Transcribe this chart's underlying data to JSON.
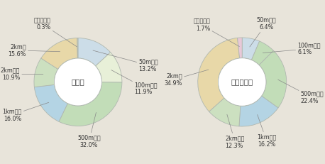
{
  "chart1": {
    "center_label": "高齢者",
    "slices": [
      {
        "label": "50m以下\n13.2%",
        "value": 13.2,
        "color": "#ccdde8"
      },
      {
        "label": "100m以下\n11.9%",
        "value": 11.9,
        "color": "#e8f0d8"
      },
      {
        "label": "500m以下\n32.0%",
        "value": 32.0,
        "color": "#c2ddb8"
      },
      {
        "label": "1km以下\n16.0%",
        "value": 16.0,
        "color": "#b4d4e4"
      },
      {
        "label": "2km以下\n10.9%",
        "value": 10.9,
        "color": "#cce0c0"
      },
      {
        "label": "2km超\n15.6%",
        "value": 15.6,
        "color": "#e8d8a8"
      },
      {
        "label": "調査不能等\n0.3%",
        "value": 0.3,
        "color": "#ddd8c0"
      }
    ]
  },
  "chart2": {
    "center_label": "高齢者以外",
    "slices": [
      {
        "label": "50m以下\n6.4%",
        "value": 6.4,
        "color": "#ccdde8"
      },
      {
        "label": "100m以下\n6.1%",
        "value": 6.1,
        "color": "#c2ddb8"
      },
      {
        "label": "500m以下\n22.4%",
        "value": 22.4,
        "color": "#c2ddb8"
      },
      {
        "label": "1km以下\n16.2%",
        "value": 16.2,
        "color": "#b4d4e4"
      },
      {
        "label": "2km以下\n12.3%",
        "value": 12.3,
        "color": "#cce0c0"
      },
      {
        "label": "2km超\n34.9%",
        "value": 34.9,
        "color": "#e8d8a8"
      },
      {
        "label": "調査不能等\n1.7%",
        "value": 1.7,
        "color": "#e8c8d8"
      }
    ]
  },
  "bg_color": "#e8e4da",
  "label_positions_1": [
    [
      1.38,
      0.38,
      "left"
    ],
    [
      1.28,
      -0.15,
      "left"
    ],
    [
      0.25,
      -1.35,
      "center"
    ],
    [
      -1.28,
      -0.75,
      "right"
    ],
    [
      -1.32,
      0.18,
      "right"
    ],
    [
      -1.18,
      0.72,
      "right"
    ],
    [
      -0.62,
      1.32,
      "right"
    ]
  ],
  "label_positions_2": [
    [
      0.55,
      1.32,
      "center"
    ],
    [
      1.25,
      0.75,
      "left"
    ],
    [
      1.32,
      -0.35,
      "left"
    ],
    [
      0.55,
      -1.32,
      "center"
    ],
    [
      -0.38,
      -1.35,
      "left"
    ],
    [
      -1.35,
      0.05,
      "right"
    ],
    [
      -0.72,
      1.28,
      "right"
    ]
  ],
  "font_size_center": 7.5,
  "font_size_label": 5.8,
  "edge_color": "#b0b8b0",
  "line_color": "#888888"
}
